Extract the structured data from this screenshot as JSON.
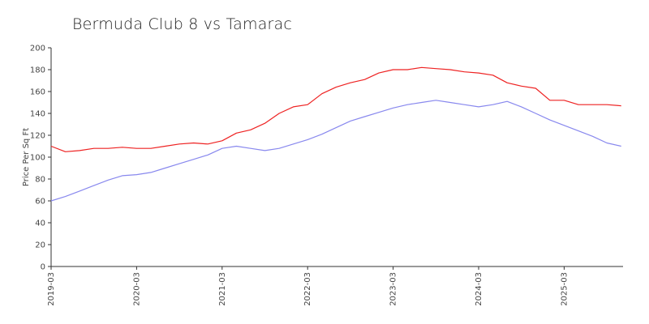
{
  "chart_data": {
    "type": "line",
    "title": "Bermuda Club 8 vs Tamarac",
    "ylabel": "Price Per Sq Ft",
    "xlabel": "",
    "ylim": [
      0,
      200
    ],
    "yticks": [
      0,
      20,
      40,
      60,
      80,
      100,
      120,
      140,
      160,
      180,
      200
    ],
    "xticks": [
      "2019-03",
      "2020-03",
      "2021-03",
      "2022-03",
      "2023-03",
      "2024-03",
      "2025-03"
    ],
    "grid": false,
    "legend": "none",
    "x": [
      "2019-03",
      "2019-05",
      "2019-07",
      "2019-09",
      "2019-11",
      "2020-01",
      "2020-03",
      "2020-05",
      "2020-07",
      "2020-09",
      "2020-11",
      "2021-01",
      "2021-03",
      "2021-05",
      "2021-07",
      "2021-09",
      "2021-11",
      "2022-01",
      "2022-03",
      "2022-05",
      "2022-07",
      "2022-09",
      "2022-11",
      "2023-01",
      "2023-03",
      "2023-05",
      "2023-07",
      "2023-09",
      "2023-11",
      "2024-01",
      "2024-03",
      "2024-05",
      "2024-07",
      "2024-09",
      "2024-11",
      "2025-01",
      "2025-03",
      "2025-05",
      "2025-07",
      "2025-09",
      "2025-11"
    ],
    "series": [
      {
        "color": "#ee2222",
        "values": [
          110,
          105,
          106,
          108,
          108,
          109,
          108,
          108,
          110,
          112,
          113,
          112,
          115,
          122,
          125,
          131,
          140,
          146,
          148,
          158,
          164,
          168,
          171,
          177,
          180,
          180,
          182,
          181,
          180,
          178,
          177,
          175,
          168,
          165,
          163,
          152,
          152,
          148,
          148,
          148,
          147
        ]
      },
      {
        "color": "#8888ee",
        "values": [
          60,
          64,
          69,
          74,
          79,
          83,
          84,
          86,
          90,
          94,
          98,
          102,
          108,
          110,
          108,
          106,
          108,
          112,
          116,
          121,
          127,
          133,
          137,
          141,
          145,
          148,
          150,
          152,
          150,
          148,
          146,
          148,
          151,
          146,
          140,
          134,
          129,
          124,
          119,
          113,
          110
        ]
      }
    ]
  }
}
